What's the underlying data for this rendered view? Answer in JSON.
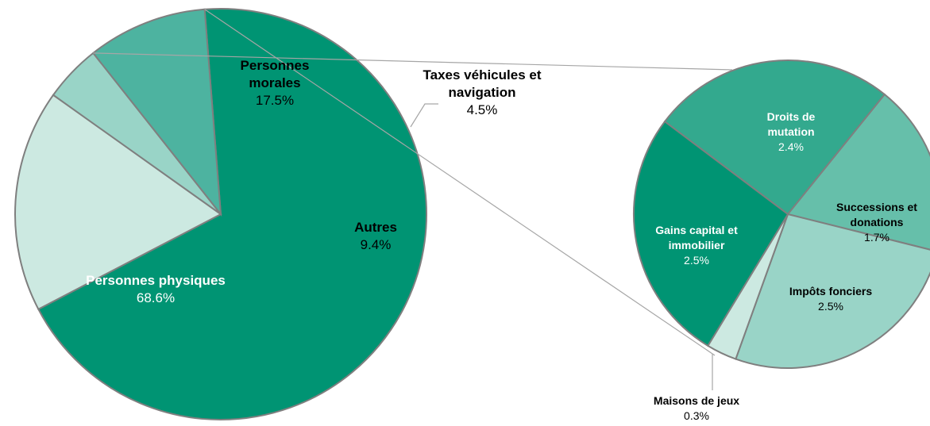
{
  "chart_data": [
    {
      "type": "pie",
      "slices": [
        {
          "name": "Personnes physiques",
          "value": 68.6,
          "label": "68.6%",
          "color": "#009473"
        },
        {
          "name": "Personnes morales",
          "value": 17.5,
          "label": "17.5%",
          "color": "#cce9e1"
        },
        {
          "name": "Taxes véhicules et navigation",
          "name_lines": [
            "Taxes véhicules et",
            "navigation"
          ],
          "value": 4.5,
          "label": "4.5%",
          "color": "#99d4c7"
        },
        {
          "name": "Autres",
          "value": 9.4,
          "label": "9.4%",
          "color": "#4db3a0"
        }
      ]
    },
    {
      "type": "pie",
      "slices": [
        {
          "name": "Droits de mutation",
          "name_lines": [
            "Droits de",
            "mutation"
          ],
          "value": 2.4,
          "label": "2.4%",
          "color": "#33a98e"
        },
        {
          "name": "Successions et donations",
          "name_lines": [
            "Successions et",
            "donations"
          ],
          "value": 1.7,
          "label": "1.7%",
          "color": "#66bfaa"
        },
        {
          "name": "Impôts fonciers",
          "value": 2.5,
          "label": "2.5%",
          "color": "#99d4c7"
        },
        {
          "name": "Maisons de jeux",
          "value": 0.3,
          "label": "0.3%",
          "color": "#cce9e1"
        },
        {
          "name": "Gains capital et immobilier",
          "name_lines": [
            "Gains capital et",
            "immobilier"
          ],
          "value": 2.5,
          "label": "2.5%",
          "color": "#009473"
        }
      ]
    }
  ]
}
